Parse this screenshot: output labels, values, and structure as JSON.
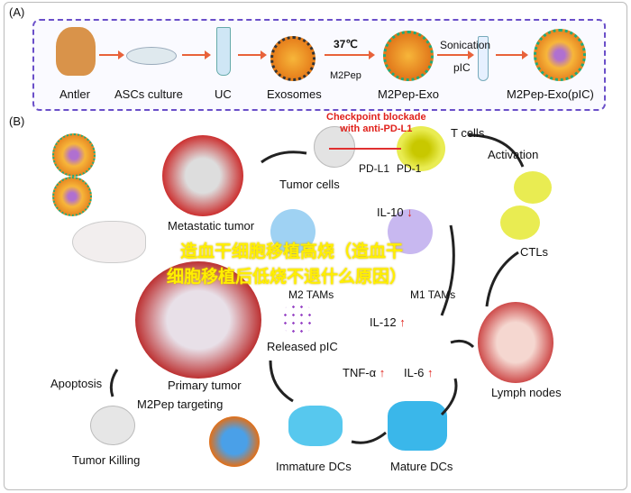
{
  "panel_a": {
    "label": "(A)",
    "steps": [
      "Antler",
      "ASCs culture",
      "UC",
      "Exosomes",
      "M2Pep-Exo",
      "M2Pep-Exo(pIC)"
    ],
    "temp": "37℃",
    "peptide": "M2Pep",
    "sonication": "Sonication",
    "pic": "pIC"
  },
  "panel_b": {
    "label": "(B)",
    "checkpoint": "Checkpoint blockade\nwith anti-PD-L1",
    "t_cells": "T cells",
    "pd_l1": "PD-L1",
    "pd_1": "PD-1",
    "tumor_cells": "Tumor cells",
    "activation": "Activation",
    "metastatic_tumor": "Metastatic tumor",
    "il10": "IL-10",
    "ctls": "CTLs",
    "m2_tams": "M2 TAMs",
    "m1_tams": "M1 TAMs",
    "il12": "IL-12",
    "released_pic": "Released pIC",
    "tnf": "TNF-α",
    "il6": "IL-6",
    "primary_tumor": "Primary tumor",
    "apoptosis": "Apoptosis",
    "m2pep_targeting": "M2Pep targeting",
    "lymph_nodes": "Lymph nodes",
    "tumor_killing": "Tumor Killing",
    "immature_dcs": "Immature DCs",
    "mature_dcs": "Mature DCs",
    "down_arrow": "↓",
    "up_arrow": "↑"
  },
  "overlay": {
    "line1": "造血干细胞移植高烧（造血干",
    "line2": "细胞移植后低烧不退什么原因）"
  },
  "colors": {
    "frame": "#6a4fc9",
    "arrow": "#e8623a",
    "overlay": "#ffef00",
    "accent_red": "#e0201a"
  }
}
